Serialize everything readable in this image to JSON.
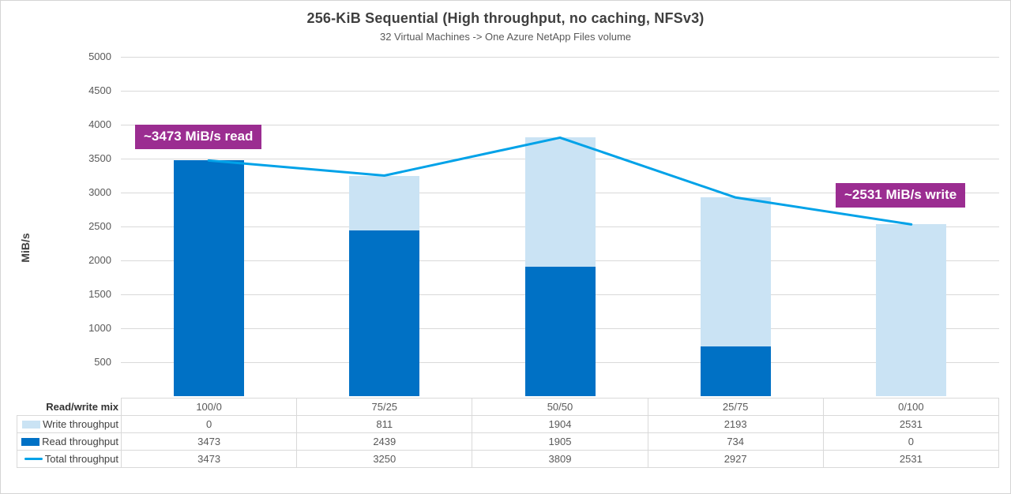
{
  "title": "256-KiB Sequential (High throughput, no caching, NFSv3)",
  "subtitle": "32 Virtual Machines -> One Azure NetApp Files volume",
  "y_axis": {
    "title": "MiB/s",
    "tick_step": 500,
    "max": 5000,
    "min": 0
  },
  "annotations": [
    {
      "id": "read-callout",
      "text": "~3473 MiB/s read"
    },
    {
      "id": "write-callout",
      "text": "~2531 MiB/s write"
    }
  ],
  "colors": {
    "write_bar": "#cae3f4",
    "read_bar": "#0071c5",
    "total_line": "#00a2e8",
    "annotation_bg": "#9b2d91",
    "grid": "#d9d9d9"
  },
  "chart_data": {
    "type": "bar",
    "subtype": "stacked-bar-with-line",
    "title": "256-KiB Sequential (High throughput, no caching, NFSv3)",
    "subtitle": "32 Virtual Machines -> One Azure NetApp Files volume",
    "xlabel": "Read/write mix",
    "ylabel": "MiB/s",
    "ylim": [
      0,
      5000
    ],
    "grid": true,
    "legend_position": "table-left",
    "categories": [
      "100/0",
      "75/25",
      "50/50",
      "25/75",
      "0/100"
    ],
    "series": [
      {
        "name": "Write throughput",
        "render": "bar",
        "swatch": "rect",
        "color": "#cae3f4",
        "values": [
          0,
          811,
          1904,
          2193,
          2531
        ]
      },
      {
        "name": "Read throughput",
        "render": "bar",
        "swatch": "rect",
        "color": "#0071c5",
        "values": [
          3473,
          2439,
          1905,
          734,
          0
        ]
      },
      {
        "name": "Total throughput",
        "render": "line",
        "swatch": "line",
        "color": "#00a2e8",
        "values": [
          3473,
          3250,
          3809,
          2927,
          2531
        ]
      }
    ],
    "table_header_label": "Read/write mix"
  }
}
